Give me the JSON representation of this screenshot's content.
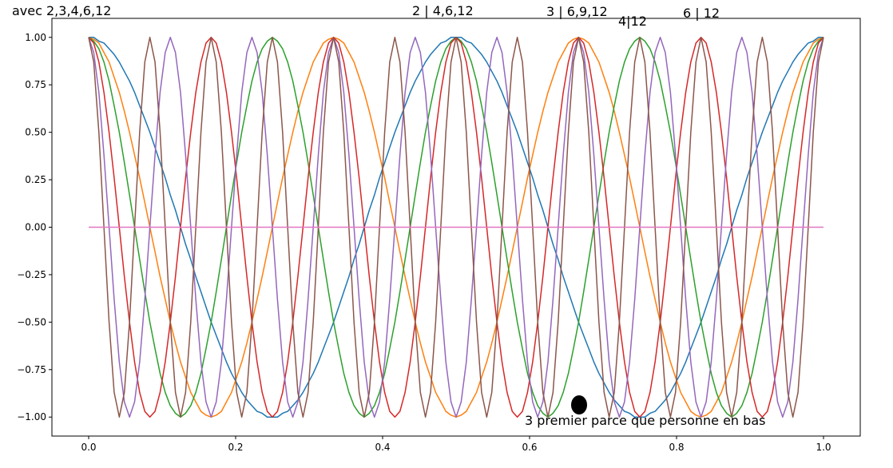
{
  "chart_data": {
    "type": "line",
    "annotations": [
      "avec 2,3,4,6,12",
      "2 | 4,6,12",
      "3 | 6,9,12",
      "4|12",
      "6 | 12",
      "3 premier parce que personne en bas"
    ],
    "xlim": [
      -0.05,
      1.05
    ],
    "ylim": [
      -1.1,
      1.1
    ],
    "xticks": [
      {
        "value": 0,
        "label": "0.0"
      },
      0.2,
      0.4,
      0.6,
      0.8,
      {
        "value": 1,
        "label": "1.0"
      }
    ],
    "yticks": [
      {
        "value": -1,
        "label": "−1.00"
      },
      {
        "value": -0.75,
        "label": "−0.75"
      },
      {
        "value": -0.5,
        "label": "−0.50"
      },
      {
        "value": -0.25,
        "label": "−0.25"
      },
      {
        "value": 0,
        "label": "0.00"
      },
      {
        "value": 0.25,
        "label": "0.25"
      },
      {
        "value": 0.5,
        "label": "0.50"
      },
      {
        "value": 0.75,
        "label": "0.75"
      },
      {
        "value": 1,
        "label": "1.00"
      }
    ],
    "x": [
      0,
      0.0069,
      0.0139,
      0.0208,
      0.0278,
      0.0347,
      0.0417,
      0.0486,
      0.0556,
      0.0625,
      0.0694,
      0.0764,
      0.0833,
      0.0903,
      0.0972,
      0.1042,
      0.1111,
      0.1181,
      0.125,
      0.1319,
      0.1389,
      0.1458,
      0.1528,
      0.1597,
      0.1667,
      0.1736,
      0.1806,
      0.1875,
      0.1944,
      0.2014,
      0.2083,
      0.2153,
      0.2222,
      0.2292,
      0.2361,
      0.2431,
      0.25,
      0.2569,
      0.2639,
      0.2708,
      0.2778,
      0.2847,
      0.2917,
      0.2986,
      0.3056,
      0.3125,
      0.3194,
      0.3264,
      0.3333,
      0.3403,
      0.3472,
      0.3542,
      0.3611,
      0.3681,
      0.375,
      0.3819,
      0.3889,
      0.3958,
      0.4028,
      0.4097,
      0.4167,
      0.4236,
      0.4306,
      0.4375,
      0.4444,
      0.4514,
      0.4583,
      0.4653,
      0.4722,
      0.4792,
      0.4861,
      0.4931,
      0.5,
      0.5069,
      0.5139,
      0.5208,
      0.5278,
      0.5347,
      0.5417,
      0.5486,
      0.5556,
      0.5625,
      0.5694,
      0.5764,
      0.5833,
      0.5903,
      0.5972,
      0.6042,
      0.6111,
      0.6181,
      0.625,
      0.6319,
      0.6389,
      0.6458,
      0.6528,
      0.6597,
      0.6667,
      0.6736,
      0.6806,
      0.6875,
      0.6944,
      0.7014,
      0.7083,
      0.7153,
      0.7222,
      0.7292,
      0.7361,
      0.7431,
      0.75,
      0.7569,
      0.7639,
      0.7708,
      0.7778,
      0.7847,
      0.7917,
      0.7986,
      0.8056,
      0.8125,
      0.8194,
      0.8264,
      0.8333,
      0.8403,
      0.8472,
      0.8542,
      0.8611,
      0.8681,
      0.875,
      0.8819,
      0.8889,
      0.8958,
      0.9028,
      0.9097,
      0.9167,
      0.9236,
      0.9306,
      0.9375,
      0.9444,
      0.9514,
      0.9583,
      0.9653,
      0.9722,
      0.9792,
      0.9861,
      0.9931,
      1
    ],
    "series": [
      {
        "color": "#1f77b4",
        "values": [
          1,
          1,
          0.98,
          0.97,
          0.94,
          0.91,
          0.87,
          0.82,
          0.77,
          0.71,
          0.64,
          0.57,
          0.5,
          0.42,
          0.34,
          0.26,
          0.17,
          0.09,
          0,
          -0.09,
          -0.17,
          -0.26,
          -0.34,
          -0.42,
          -0.5,
          -0.57,
          -0.64,
          -0.71,
          -0.77,
          -0.82,
          -0.87,
          -0.91,
          -0.94,
          -0.97,
          -0.98,
          -1,
          -1,
          -1,
          -0.98,
          -0.97,
          -0.94,
          -0.91,
          -0.87,
          -0.82,
          -0.77,
          -0.71,
          -0.64,
          -0.57,
          -0.5,
          -0.42,
          -0.34,
          -0.26,
          -0.17,
          -0.09,
          0,
          0.09,
          0.17,
          0.26,
          0.34,
          0.42,
          0.5,
          0.57,
          0.64,
          0.71,
          0.77,
          0.82,
          0.87,
          0.91,
          0.94,
          0.97,
          0.98,
          1,
          1,
          1,
          0.98,
          0.97,
          0.94,
          0.91,
          0.87,
          0.82,
          0.77,
          0.71,
          0.64,
          0.57,
          0.5,
          0.42,
          0.34,
          0.26,
          0.17,
          0.09,
          0,
          -0.09,
          -0.17,
          -0.26,
          -0.34,
          -0.42,
          -0.5,
          -0.57,
          -0.64,
          -0.71,
          -0.77,
          -0.82,
          -0.87,
          -0.91,
          -0.94,
          -0.97,
          -0.98,
          -1,
          -1,
          -1,
          -0.98,
          -0.97,
          -0.94,
          -0.91,
          -0.87,
          -0.82,
          -0.77,
          -0.71,
          -0.64,
          -0.57,
          -0.5,
          -0.42,
          -0.34,
          -0.26,
          -0.17,
          -0.09,
          0,
          0.09,
          0.17,
          0.26,
          0.34,
          0.42,
          0.5,
          0.57,
          0.64,
          0.71,
          0.77,
          0.82,
          0.87,
          0.91,
          0.94,
          0.97,
          0.98,
          1,
          1
        ]
      },
      {
        "color": "#ff7f0e",
        "values": [
          1,
          0.99,
          0.97,
          0.92,
          0.87,
          0.79,
          0.71,
          0.61,
          0.5,
          0.38,
          0.26,
          0.13,
          0,
          -0.13,
          -0.26,
          -0.38,
          -0.5,
          -0.61,
          -0.71,
          -0.79,
          -0.87,
          -0.92,
          -0.97,
          -0.99,
          -1,
          -0.99,
          -0.97,
          -0.92,
          -0.87,
          -0.79,
          -0.71,
          -0.61,
          -0.5,
          -0.38,
          -0.26,
          -0.13,
          0,
          0.13,
          0.26,
          0.38,
          0.5,
          0.61,
          0.71,
          0.79,
          0.87,
          0.92,
          0.97,
          0.99,
          1,
          0.99,
          0.97,
          0.92,
          0.87,
          0.79,
          0.71,
          0.61,
          0.5,
          0.38,
          0.26,
          0.13,
          0,
          -0.13,
          -0.26,
          -0.38,
          -0.5,
          -0.61,
          -0.71,
          -0.79,
          -0.87,
          -0.92,
          -0.97,
          -0.99,
          -1,
          -0.99,
          -0.97,
          -0.92,
          -0.87,
          -0.79,
          -0.71,
          -0.61,
          -0.5,
          -0.38,
          -0.26,
          -0.13,
          0,
          0.13,
          0.26,
          0.38,
          0.5,
          0.61,
          0.71,
          0.79,
          0.87,
          0.92,
          0.97,
          0.99,
          1,
          0.99,
          0.97,
          0.92,
          0.87,
          0.79,
          0.71,
          0.61,
          0.5,
          0.38,
          0.26,
          0.13,
          0,
          -0.13,
          -0.26,
          -0.38,
          -0.5,
          -0.61,
          -0.71,
          -0.79,
          -0.87,
          -0.92,
          -0.97,
          -0.99,
          -1,
          -0.99,
          -0.97,
          -0.92,
          -0.87,
          -0.79,
          -0.71,
          -0.61,
          -0.5,
          -0.38,
          -0.26,
          -0.13,
          0,
          0.13,
          0.26,
          0.38,
          0.5,
          0.61,
          0.71,
          0.79,
          0.87,
          0.92,
          0.97,
          0.99,
          1
        ]
      },
      {
        "color": "#2ca02c",
        "values": [
          1,
          0.98,
          0.94,
          0.87,
          0.77,
          0.64,
          0.5,
          0.34,
          0.17,
          0,
          -0.17,
          -0.34,
          -0.5,
          -0.64,
          -0.77,
          -0.87,
          -0.94,
          -0.98,
          -1,
          -0.98,
          -0.94,
          -0.87,
          -0.77,
          -0.64,
          -0.5,
          -0.34,
          -0.17,
          0,
          0.17,
          0.34,
          0.5,
          0.64,
          0.77,
          0.87,
          0.94,
          0.98,
          1,
          0.98,
          0.94,
          0.87,
          0.77,
          0.64,
          0.5,
          0.34,
          0.17,
          0,
          -0.17,
          -0.34,
          -0.5,
          -0.64,
          -0.77,
          -0.87,
          -0.94,
          -0.98,
          -1,
          -0.98,
          -0.94,
          -0.87,
          -0.77,
          -0.64,
          -0.5,
          -0.34,
          -0.17,
          0,
          0.17,
          0.34,
          0.5,
          0.64,
          0.77,
          0.87,
          0.94,
          0.98,
          1,
          0.98,
          0.94,
          0.87,
          0.77,
          0.64,
          0.5,
          0.34,
          0.17,
          0,
          -0.17,
          -0.34,
          -0.5,
          -0.64,
          -0.77,
          -0.87,
          -0.94,
          -0.98,
          -1,
          -0.98,
          -0.94,
          -0.87,
          -0.77,
          -0.64,
          -0.5,
          -0.34,
          -0.17,
          0,
          0.17,
          0.34,
          0.5,
          0.64,
          0.77,
          0.87,
          0.94,
          0.98,
          1,
          0.98,
          0.94,
          0.87,
          0.77,
          0.64,
          0.5,
          0.34,
          0.17,
          0,
          -0.17,
          -0.34,
          -0.5,
          -0.64,
          -0.77,
          -0.87,
          -0.94,
          -0.98,
          -1,
          -0.98,
          -0.94,
          -0.87,
          -0.77,
          -0.64,
          -0.5,
          -0.34,
          -0.17,
          0,
          0.17,
          0.34,
          0.5,
          0.64,
          0.77,
          0.87,
          0.94,
          0.98,
          1
        ]
      },
      {
        "color": "#d62728",
        "values": [
          1,
          0.97,
          0.87,
          0.71,
          0.5,
          0.26,
          0,
          -0.26,
          -0.5,
          -0.71,
          -0.87,
          -0.97,
          -1,
          -0.97,
          -0.87,
          -0.71,
          -0.5,
          -0.26,
          0,
          0.26,
          0.5,
          0.71,
          0.87,
          0.97,
          1,
          0.97,
          0.87,
          0.71,
          0.5,
          0.26,
          0,
          -0.26,
          -0.5,
          -0.71,
          -0.87,
          -0.97,
          -1,
          -0.97,
          -0.87,
          -0.71,
          -0.5,
          -0.26,
          0,
          0.26,
          0.5,
          0.71,
          0.87,
          0.97,
          1,
          0.97,
          0.87,
          0.71,
          0.5,
          0.26,
          0,
          -0.26,
          -0.5,
          -0.71,
          -0.87,
          -0.97,
          -1,
          -0.97,
          -0.87,
          -0.71,
          -0.5,
          -0.26,
          0,
          0.26,
          0.5,
          0.71,
          0.87,
          0.97,
          1,
          0.97,
          0.87,
          0.71,
          0.5,
          0.26,
          0,
          -0.26,
          -0.5,
          -0.71,
          -0.87,
          -0.97,
          -1,
          -0.97,
          -0.87,
          -0.71,
          -0.5,
          -0.26,
          0,
          0.26,
          0.5,
          0.71,
          0.87,
          0.97,
          1,
          0.97,
          0.87,
          0.71,
          0.5,
          0.26,
          0,
          -0.26,
          -0.5,
          -0.71,
          -0.87,
          -0.97,
          -1,
          -0.97,
          -0.87,
          -0.71,
          -0.5,
          -0.26,
          0,
          0.26,
          0.5,
          0.71,
          0.87,
          0.97,
          1,
          0.97,
          0.87,
          0.71,
          0.5,
          0.26,
          0,
          -0.26,
          -0.5,
          -0.71,
          -0.87,
          -0.97,
          -1,
          -0.97,
          -0.87,
          -0.71,
          -0.5,
          -0.26,
          0,
          0.26,
          0.5,
          0.71,
          0.87,
          0.97,
          1
        ]
      },
      {
        "color": "#9467bd",
        "values": [
          1,
          0.92,
          0.71,
          0.38,
          0,
          -0.38,
          -0.71,
          -0.92,
          -1,
          -0.92,
          -0.71,
          -0.38,
          0,
          0.38,
          0.71,
          0.92,
          1,
          0.92,
          0.71,
          0.38,
          0,
          -0.38,
          -0.71,
          -0.92,
          -1,
          -0.92,
          -0.71,
          -0.38,
          0,
          0.38,
          0.71,
          0.92,
          1,
          0.92,
          0.71,
          0.38,
          0,
          -0.38,
          -0.71,
          -0.92,
          -1,
          -0.92,
          -0.71,
          -0.38,
          0,
          0.38,
          0.71,
          0.92,
          1,
          0.92,
          0.71,
          0.38,
          0,
          -0.38,
          -0.71,
          -0.92,
          -1,
          -0.92,
          -0.71,
          -0.38,
          0,
          0.38,
          0.71,
          0.92,
          1,
          0.92,
          0.71,
          0.38,
          0,
          -0.38,
          -0.71,
          -0.92,
          -1,
          -0.92,
          -0.71,
          -0.38,
          0,
          0.38,
          0.71,
          0.92,
          1,
          0.92,
          0.71,
          0.38,
          0,
          -0.38,
          -0.71,
          -0.92,
          -1,
          -0.92,
          -0.71,
          -0.38,
          0,
          0.38,
          0.71,
          0.92,
          1,
          0.92,
          0.71,
          0.38,
          0,
          -0.38,
          -0.71,
          -0.92,
          -1,
          -0.92,
          -0.71,
          -0.38,
          0,
          0.38,
          0.71,
          0.92,
          1,
          0.92,
          0.71,
          0.38,
          0,
          -0.38,
          -0.71,
          -0.92,
          -1,
          -0.92,
          -0.71,
          -0.38,
          0,
          0.38,
          0.71,
          0.92,
          1,
          0.92,
          0.71,
          0.38,
          0,
          -0.38,
          -0.71,
          -0.92,
          -1,
          -0.92,
          -0.71,
          -0.38,
          0,
          0.38,
          0.71,
          0.92,
          1
        ]
      },
      {
        "color": "#8c564b",
        "values": [
          1,
          0.87,
          0.5,
          0,
          -0.5,
          -0.87,
          -1,
          -0.87,
          -0.5,
          0,
          0.5,
          0.87,
          1,
          0.87,
          0.5,
          0,
          -0.5,
          -0.87,
          -1,
          -0.87,
          -0.5,
          0,
          0.5,
          0.87,
          1,
          0.87,
          0.5,
          0,
          -0.5,
          -0.87,
          -1,
          -0.87,
          -0.5,
          0,
          0.5,
          0.87,
          1,
          0.87,
          0.5,
          0,
          -0.5,
          -0.87,
          -1,
          -0.87,
          -0.5,
          0,
          0.5,
          0.87,
          1,
          0.87,
          0.5,
          0,
          -0.5,
          -0.87,
          -1,
          -0.87,
          -0.5,
          0,
          0.5,
          0.87,
          1,
          0.87,
          0.5,
          0,
          -0.5,
          -0.87,
          -1,
          -0.87,
          -0.5,
          0,
          0.5,
          0.87,
          1,
          0.87,
          0.5,
          0,
          -0.5,
          -0.87,
          -1,
          -0.87,
          -0.5,
          0,
          0.5,
          0.87,
          1,
          0.87,
          0.5,
          0,
          -0.5,
          -0.87,
          -1,
          -0.87,
          -0.5,
          0,
          0.5,
          0.87,
          1,
          0.87,
          0.5,
          0,
          -0.5,
          -0.87,
          -1,
          -0.87,
          -0.5,
          0,
          0.5,
          0.87,
          1,
          0.87,
          0.5,
          0,
          -0.5,
          -0.87,
          -1,
          -0.87,
          -0.5,
          0,
          0.5,
          0.87,
          1,
          0.87,
          0.5,
          0,
          -0.5,
          -0.87,
          -1,
          -0.87,
          -0.5,
          0,
          0.5,
          0.87,
          1,
          0.87,
          0.5,
          0,
          -0.5,
          -0.87,
          -1,
          -0.87,
          -0.5,
          0,
          0.5,
          0.87,
          1
        ]
      },
      {
        "color": "#e377c2",
        "x": [
          0,
          1
        ],
        "values": [
          0,
          0
        ]
      }
    ]
  }
}
